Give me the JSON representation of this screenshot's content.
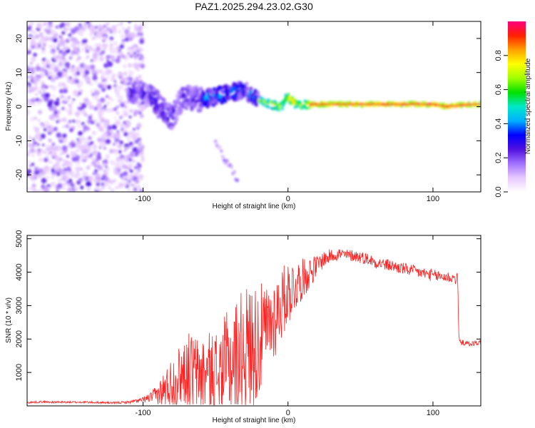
{
  "chart_data": [
    {
      "type": "heatmap",
      "title": "PAZ1.2025.294.23.02.G30",
      "xlabel": "Height of straight line (km)",
      "ylabel": "Frequency (Hz)",
      "xlim": [
        -180,
        133
      ],
      "ylim": [
        -25,
        25
      ],
      "xticks": [
        -100,
        0,
        100
      ],
      "yticks": [
        -20,
        -10,
        0,
        10,
        20
      ],
      "colorbar": {
        "label": "Normalized spectral amplitude",
        "range": [
          0,
          1
        ],
        "ticks": [
          0.0,
          0.2,
          0.4,
          0.6,
          0.8
        ],
        "colors": [
          "#ffffff",
          "#e6c8ff",
          "#a070ff",
          "#5010e0",
          "#0000ff",
          "#00b0ff",
          "#00e8c8",
          "#00e000",
          "#a0ff00",
          "#ffff00",
          "#ffa000",
          "#ff2000",
          "#ff0080"
        ]
      },
      "features": [
        {
          "name": "noise",
          "x_range": [
            -180,
            -100
          ],
          "freq_range": [
            -25,
            25
          ],
          "amplitude": 0.1
        },
        {
          "name": "signal-track",
          "points": [
            [
              -110,
              5
            ],
            [
              -100,
              4
            ],
            [
              -95,
              3
            ],
            [
              -90,
              1
            ],
            [
              -85,
              -2
            ],
            [
              -80,
              -3
            ],
            [
              -75,
              1
            ],
            [
              -70,
              3
            ],
            [
              -60,
              2
            ],
            [
              -50,
              3
            ],
            [
              -40,
              4
            ],
            [
              -30,
              5
            ],
            [
              -20,
              2
            ],
            [
              -15,
              1
            ],
            [
              -10,
              0.5
            ],
            [
              -5,
              0
            ],
            [
              0,
              3
            ],
            [
              5,
              1
            ],
            [
              10,
              0.5
            ],
            [
              20,
              0.7
            ],
            [
              90,
              0.7
            ],
            [
              100,
              0.7
            ],
            [
              110,
              0
            ],
            [
              120,
              0.5
            ],
            [
              133,
              0.7
            ]
          ]
        },
        {
          "name": "side-branch",
          "points": [
            [
              -50,
              -10
            ],
            [
              -45,
              -14
            ],
            [
              -40,
              -18
            ],
            [
              -35,
              -21
            ]
          ]
        }
      ]
    },
    {
      "type": "line",
      "xlabel": "Height of straight line (km)",
      "ylabel": "SNR (10 * v/v)",
      "xlim": [
        -180,
        133
      ],
      "ylim": [
        0,
        5100
      ],
      "xticks": [
        -100,
        0,
        100
      ],
      "yticks": [
        1000,
        2000,
        3000,
        4000,
        5000
      ],
      "color": "#ff2020",
      "series": [
        {
          "name": "SNR",
          "x": [
            -180,
            -170,
            -160,
            -150,
            -140,
            -130,
            -120,
            -110,
            -100,
            -95,
            -90,
            -85,
            -80,
            -75,
            -70,
            -65,
            -60,
            -55,
            -50,
            -45,
            -40,
            -35,
            -30,
            -25,
            -20,
            -15,
            -10,
            -5,
            0,
            5,
            10,
            15,
            20,
            25,
            30,
            35,
            40,
            45,
            50,
            55,
            60,
            70,
            80,
            90,
            100,
            110,
            117,
            118,
            120,
            125,
            133
          ],
          "values": [
            100,
            120,
            110,
            110,
            110,
            100,
            90,
            110,
            180,
            250,
            350,
            500,
            700,
            900,
            1100,
            1000,
            950,
            1000,
            1000,
            1100,
            1300,
            1500,
            1700,
            1800,
            1900,
            2300,
            2600,
            3000,
            3400,
            3600,
            3800,
            4000,
            4200,
            4400,
            4500,
            4550,
            4500,
            4500,
            4450,
            4400,
            4300,
            4200,
            4100,
            4000,
            3900,
            3850,
            3800,
            1950,
            1900,
            1850,
            1900
          ],
          "amplitude": [
            30,
            30,
            30,
            30,
            30,
            30,
            30,
            40,
            80,
            150,
            300,
            600,
            800,
            900,
            1100,
            1200,
            1200,
            1200,
            1300,
            1500,
            1700,
            1800,
            1900,
            1900,
            1800,
            1300,
            1300,
            1100,
            1000,
            800,
            600,
            500,
            300,
            250,
            200,
            200,
            180,
            180,
            180,
            180,
            180,
            180,
            180,
            180,
            180,
            180,
            180,
            80,
            80,
            80,
            80
          ]
        }
      ]
    }
  ]
}
